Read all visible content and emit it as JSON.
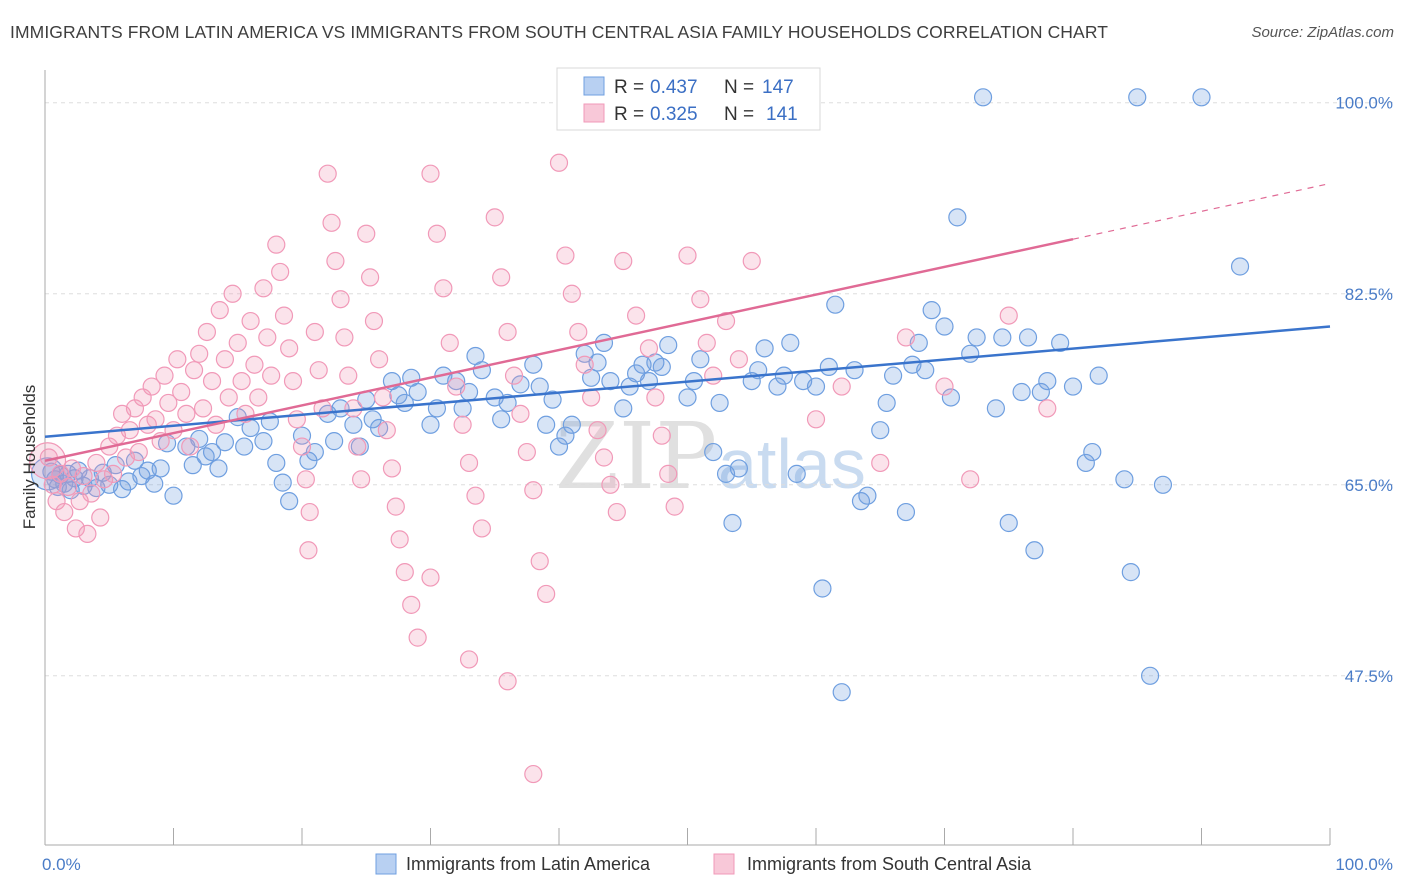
{
  "chart_data": {
    "type": "scatter",
    "title": "IMMIGRANTS FROM LATIN AMERICA VS IMMIGRANTS FROM SOUTH CENTRAL ASIA FAMILY HOUSEHOLDS CORRELATION CHART",
    "source": "Source: ZipAtlas.com",
    "ylabel": "Family Households",
    "xlabel": "",
    "xlim": [
      0,
      100
    ],
    "ylim": [
      32,
      103
    ],
    "x_tick_labels": [
      "0.0%",
      "100.0%"
    ],
    "y_ticks": [
      {
        "value": 100.0,
        "label": "100.0%"
      },
      {
        "value": 82.5,
        "label": "82.5%"
      },
      {
        "value": 65.0,
        "label": "65.0%"
      },
      {
        "value": 47.5,
        "label": "47.5%"
      }
    ],
    "watermark": {
      "zip": "ZIP",
      "atlas": "atlas"
    },
    "legend": [
      {
        "label": "R = ",
        "r": "0.437",
        "n_label": "N = ",
        "n": "147"
      },
      {
        "label": "R = ",
        "r": "0.325",
        "n_label": "N = ",
        "n": "141"
      }
    ],
    "series": [
      {
        "name": "Immigrants from Latin America",
        "color": "#6f9fe0",
        "line_color": "#3a74cc",
        "r": 0.437,
        "n": 147,
        "trend": {
          "x0": 0,
          "y0": 69.4,
          "x1": 100,
          "y1": 79.5
        },
        "points": [
          [
            0.5,
            66.2
          ],
          [
            0.8,
            65.5
          ],
          [
            1,
            64.8
          ],
          [
            1.2,
            65.9
          ],
          [
            1.5,
            65.1
          ],
          [
            1.8,
            66.0
          ],
          [
            2,
            64.5
          ],
          [
            2.3,
            65.6
          ],
          [
            2.6,
            66.3
          ],
          [
            3,
            64.9
          ],
          [
            3.5,
            65.6
          ],
          [
            4,
            64.7
          ],
          [
            4.5,
            66.1
          ],
          [
            5,
            65.0
          ],
          [
            5.5,
            66.8
          ],
          [
            6,
            64.6
          ],
          [
            6.5,
            65.3
          ],
          [
            7,
            67.2
          ],
          [
            7.5,
            65.8
          ],
          [
            8,
            66.3
          ],
          [
            8.5,
            65.1
          ],
          [
            9,
            66.5
          ],
          [
            9.5,
            68.8
          ],
          [
            10,
            64.0
          ],
          [
            11,
            68.5
          ],
          [
            11.5,
            66.8
          ],
          [
            12,
            69.2
          ],
          [
            12.5,
            67.6
          ],
          [
            13,
            68.0
          ],
          [
            13.5,
            66.5
          ],
          [
            14,
            68.9
          ],
          [
            15,
            71.2
          ],
          [
            15.5,
            68.5
          ],
          [
            16,
            70.2
          ],
          [
            17,
            69.0
          ],
          [
            17.5,
            70.8
          ],
          [
            18,
            67.0
          ],
          [
            18.5,
            65.2
          ],
          [
            19,
            63.5
          ],
          [
            20,
            69.5
          ],
          [
            20.5,
            67.2
          ],
          [
            21,
            68.0
          ],
          [
            22,
            71.5
          ],
          [
            22.5,
            69.0
          ],
          [
            23,
            72.0
          ],
          [
            24,
            70.5
          ],
          [
            24.5,
            68.5
          ],
          [
            25,
            72.8
          ],
          [
            25.5,
            71.0
          ],
          [
            26,
            70.2
          ],
          [
            27,
            74.5
          ],
          [
            27.5,
            73.2
          ],
          [
            28,
            72.5
          ],
          [
            28.5,
            74.8
          ],
          [
            29,
            73.5
          ],
          [
            30,
            70.5
          ],
          [
            30.5,
            72.0
          ],
          [
            31,
            75.0
          ],
          [
            32,
            74.5
          ],
          [
            32.5,
            72.0
          ],
          [
            33,
            73.5
          ],
          [
            33.5,
            76.8
          ],
          [
            34,
            75.5
          ],
          [
            35,
            73.0
          ],
          [
            35.5,
            71.0
          ],
          [
            36,
            72.5
          ],
          [
            37,
            74.2
          ],
          [
            38,
            76.0
          ],
          [
            38.5,
            74.0
          ],
          [
            39,
            70.5
          ],
          [
            39.5,
            72.8
          ],
          [
            40,
            68.5
          ],
          [
            40.5,
            69.5
          ],
          [
            41,
            70.5
          ],
          [
            42,
            77.0
          ],
          [
            42.5,
            74.8
          ],
          [
            43,
            76.2
          ],
          [
            43.5,
            78.0
          ],
          [
            44,
            74.5
          ],
          [
            45,
            72.0
          ],
          [
            45.5,
            74.0
          ],
          [
            46,
            75.2
          ],
          [
            46.5,
            76.0
          ],
          [
            47,
            74.5
          ],
          [
            47.5,
            76.2
          ],
          [
            48,
            75.8
          ],
          [
            48.5,
            77.8
          ],
          [
            50,
            73.0
          ],
          [
            50.5,
            74.5
          ],
          [
            51,
            76.5
          ],
          [
            52,
            68.0
          ],
          [
            52.5,
            72.5
          ],
          [
            53,
            66.0
          ],
          [
            53.5,
            61.5
          ],
          [
            54,
            66.5
          ],
          [
            55,
            74.5
          ],
          [
            55.5,
            75.5
          ],
          [
            56,
            77.5
          ],
          [
            57,
            74.0
          ],
          [
            57.5,
            75.0
          ],
          [
            58,
            78.0
          ],
          [
            58.5,
            66.0
          ],
          [
            59,
            74.5
          ],
          [
            60,
            74.0
          ],
          [
            60.5,
            55.5
          ],
          [
            61,
            75.8
          ],
          [
            61.5,
            81.5
          ],
          [
            62,
            46.0
          ],
          [
            63,
            75.5
          ],
          [
            63.5,
            63.5
          ],
          [
            64,
            64.0
          ],
          [
            65,
            70.0
          ],
          [
            65.5,
            72.5
          ],
          [
            66,
            75.0
          ],
          [
            67,
            62.5
          ],
          [
            67.5,
            76.0
          ],
          [
            68,
            78.0
          ],
          [
            68.5,
            75.5
          ],
          [
            69,
            81.0
          ],
          [
            70,
            79.5
          ],
          [
            70.5,
            73.0
          ],
          [
            71,
            89.5
          ],
          [
            72,
            77.0
          ],
          [
            72.5,
            78.5
          ],
          [
            73,
            100.5
          ],
          [
            74,
            72.0
          ],
          [
            74.5,
            78.5
          ],
          [
            75,
            61.5
          ],
          [
            76,
            73.5
          ],
          [
            76.5,
            78.5
          ],
          [
            77,
            59.0
          ],
          [
            77.5,
            73.5
          ],
          [
            78,
            74.5
          ],
          [
            79,
            78.0
          ],
          [
            80,
            74.0
          ],
          [
            81,
            67.0
          ],
          [
            81.5,
            68.0
          ],
          [
            82,
            75.0
          ],
          [
            84,
            65.5
          ],
          [
            84.5,
            57.0
          ],
          [
            85,
            100.5
          ],
          [
            86,
            47.5
          ],
          [
            87,
            65.0
          ],
          [
            90,
            100.5
          ],
          [
            93,
            85.0
          ]
        ]
      },
      {
        "name": "Immigrants from South Central Asia",
        "color": "#f199b8",
        "line_color": "#e06a95",
        "r": 0.325,
        "n": 141,
        "trend": {
          "x0": 0,
          "y0": 67.2,
          "x1": 80,
          "y1": 87.5,
          "x_dash_end": 100,
          "y_dash_end": 92.6
        },
        "points": [
          [
            0.3,
            67.5
          ],
          [
            0.6,
            65.0
          ],
          [
            0.9,
            63.5
          ],
          [
            1.2,
            66.0
          ],
          [
            1.5,
            62.5
          ],
          [
            1.8,
            64.8
          ],
          [
            2.1,
            66.5
          ],
          [
            2.4,
            61.0
          ],
          [
            2.7,
            63.5
          ],
          [
            3,
            65.8
          ],
          [
            3.3,
            60.5
          ],
          [
            3.6,
            64.2
          ],
          [
            4,
            67.0
          ],
          [
            4.3,
            62.0
          ],
          [
            4.6,
            65.5
          ],
          [
            5,
            68.5
          ],
          [
            5.3,
            66.0
          ],
          [
            5.6,
            69.5
          ],
          [
            6,
            71.5
          ],
          [
            6.3,
            67.5
          ],
          [
            6.6,
            70.0
          ],
          [
            7,
            72.0
          ],
          [
            7.3,
            68.0
          ],
          [
            7.6,
            73.0
          ],
          [
            8,
            70.5
          ],
          [
            8.3,
            74.0
          ],
          [
            8.6,
            71.0
          ],
          [
            9,
            69.0
          ],
          [
            9.3,
            75.0
          ],
          [
            9.6,
            72.5
          ],
          [
            10,
            70.0
          ],
          [
            10.3,
            76.5
          ],
          [
            10.6,
            73.5
          ],
          [
            11,
            71.5
          ],
          [
            11.3,
            68.5
          ],
          [
            11.6,
            75.5
          ],
          [
            12,
            77.0
          ],
          [
            12.3,
            72.0
          ],
          [
            12.6,
            79.0
          ],
          [
            13,
            74.5
          ],
          [
            13.3,
            70.5
          ],
          [
            13.6,
            81.0
          ],
          [
            14,
            76.5
          ],
          [
            14.3,
            73.0
          ],
          [
            14.6,
            82.5
          ],
          [
            15,
            78.0
          ],
          [
            15.3,
            74.5
          ],
          [
            15.6,
            71.5
          ],
          [
            16,
            80.0
          ],
          [
            16.3,
            76.0
          ],
          [
            16.6,
            73.0
          ],
          [
            17,
            83.0
          ],
          [
            17.3,
            78.5
          ],
          [
            17.6,
            75.0
          ],
          [
            18,
            87.0
          ],
          [
            18.3,
            84.5
          ],
          [
            18.6,
            80.5
          ],
          [
            19,
            77.5
          ],
          [
            19.3,
            74.5
          ],
          [
            19.6,
            71.0
          ],
          [
            20,
            68.5
          ],
          [
            20.3,
            65.5
          ],
          [
            20.6,
            62.5
          ],
          [
            21,
            79.0
          ],
          [
            21.3,
            75.5
          ],
          [
            21.6,
            72.0
          ],
          [
            22,
            93.5
          ],
          [
            22.3,
            89.0
          ],
          [
            22.6,
            85.5
          ],
          [
            23,
            82.0
          ],
          [
            23.3,
            78.5
          ],
          [
            23.6,
            75.0
          ],
          [
            24,
            72.0
          ],
          [
            24.3,
            68.5
          ],
          [
            24.6,
            65.5
          ],
          [
            25,
            88.0
          ],
          [
            25.3,
            84.0
          ],
          [
            25.6,
            80.0
          ],
          [
            26,
            76.5
          ],
          [
            26.3,
            73.0
          ],
          [
            26.6,
            70.0
          ],
          [
            27,
            66.5
          ],
          [
            27.3,
            63.0
          ],
          [
            27.6,
            60.0
          ],
          [
            28,
            57.0
          ],
          [
            28.5,
            54.0
          ],
          [
            29,
            51.0
          ],
          [
            30,
            93.5
          ],
          [
            30.5,
            88.0
          ],
          [
            31,
            83.0
          ],
          [
            31.5,
            78.0
          ],
          [
            32,
            74.0
          ],
          [
            32.5,
            70.5
          ],
          [
            33,
            67.0
          ],
          [
            33.5,
            64.0
          ],
          [
            34,
            61.0
          ],
          [
            35,
            89.5
          ],
          [
            35.5,
            84.0
          ],
          [
            36,
            79.0
          ],
          [
            36.5,
            75.0
          ],
          [
            37,
            71.5
          ],
          [
            37.5,
            68.0
          ],
          [
            38,
            64.5
          ],
          [
            38.5,
            58.0
          ],
          [
            39,
            55.0
          ],
          [
            40,
            94.5
          ],
          [
            40.5,
            86.0
          ],
          [
            41,
            82.5
          ],
          [
            41.5,
            79.0
          ],
          [
            42,
            76.0
          ],
          [
            42.5,
            73.0
          ],
          [
            43,
            70.0
          ],
          [
            43.5,
            67.5
          ],
          [
            44,
            65.0
          ],
          [
            44.5,
            62.5
          ],
          [
            45,
            85.5
          ],
          [
            46,
            80.5
          ],
          [
            47,
            77.5
          ],
          [
            47.5,
            73.0
          ],
          [
            48,
            69.5
          ],
          [
            48.5,
            66.0
          ],
          [
            49,
            63.0
          ],
          [
            50,
            86.0
          ],
          [
            51,
            82.0
          ],
          [
            51.5,
            78.0
          ],
          [
            52,
            75.0
          ],
          [
            53,
            80.0
          ],
          [
            54,
            76.5
          ],
          [
            55,
            85.5
          ],
          [
            60,
            71.0
          ],
          [
            62,
            74.0
          ],
          [
            65,
            67.0
          ],
          [
            67,
            78.5
          ],
          [
            70,
            74.0
          ],
          [
            72,
            65.5
          ],
          [
            75,
            80.5
          ],
          [
            78,
            72.0
          ],
          [
            38,
            38.5
          ],
          [
            36,
            47.0
          ],
          [
            33,
            49.0
          ],
          [
            30,
            56.5
          ],
          [
            20.5,
            59.0
          ]
        ]
      }
    ]
  },
  "bottom_legend": [
    {
      "label": "Immigrants from Latin America"
    },
    {
      "label": "Immigrants from South Central Asia"
    }
  ]
}
